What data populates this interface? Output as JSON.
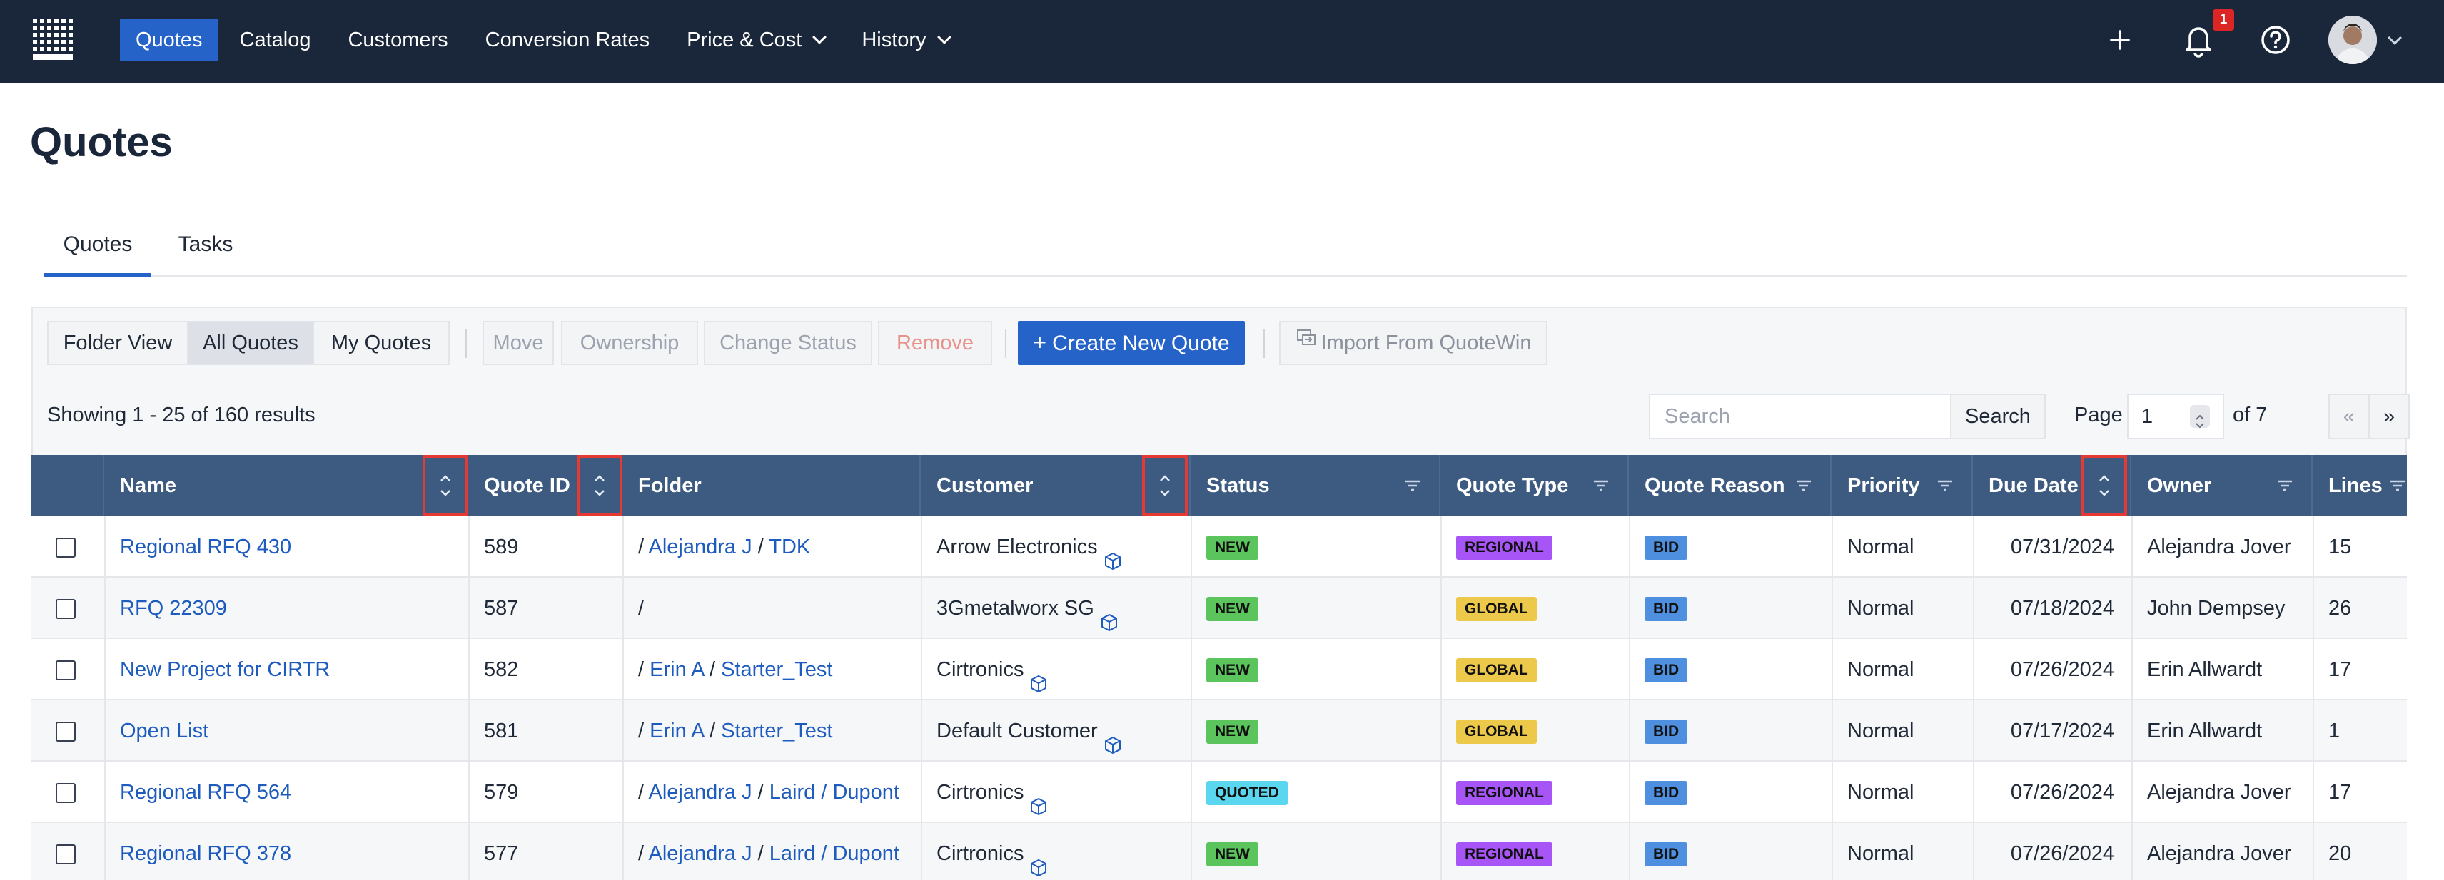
{
  "nav": {
    "items": [
      {
        "label": "Quotes",
        "active": true,
        "dropdown": false
      },
      {
        "label": "Catalog",
        "active": false,
        "dropdown": false
      },
      {
        "label": "Customers",
        "active": false,
        "dropdown": false
      },
      {
        "label": "Conversion Rates",
        "active": false,
        "dropdown": false
      },
      {
        "label": "Price & Cost",
        "active": false,
        "dropdown": true
      },
      {
        "label": "History",
        "active": false,
        "dropdown": true
      }
    ],
    "notification_count": "1",
    "icons": [
      "plus-icon",
      "bell-icon",
      "help-icon",
      "avatar",
      "chevron-down-icon"
    ]
  },
  "page": {
    "title": "Quotes"
  },
  "tabs": [
    {
      "label": "Quotes",
      "active": true
    },
    {
      "label": "Tasks",
      "active": false
    }
  ],
  "toolbar": {
    "folder_view": "Folder View",
    "all_quotes": "All Quotes",
    "my_quotes": "My Quotes",
    "move": "Move",
    "ownership": "Ownership",
    "change_status": "Change Status",
    "remove": "Remove",
    "create": "Create New Quote",
    "import": "Import From QuoteWin"
  },
  "results": {
    "showing": "Showing 1 - 25 of 160 results",
    "search_placeholder": "Search",
    "search_button": "Search",
    "page_label": "Page",
    "page_value": "1",
    "page_of": "of 7",
    "prev": "«",
    "next": "»"
  },
  "table": {
    "columns": [
      "Name",
      "Quote ID",
      "Folder",
      "Customer",
      "Status",
      "Quote Type",
      "Quote Reason",
      "Priority",
      "Due Date",
      "Owner",
      "Lines"
    ],
    "rows": [
      {
        "name": "Regional RFQ 430",
        "id": "589",
        "folder": [
          "Alejandra J",
          "TDK"
        ],
        "customer": "Arrow Electronics",
        "status": "NEW",
        "type": "REGIONAL",
        "reason": "BID",
        "priority": "Normal",
        "due": "07/31/2024",
        "owner": "Alejandra Jover",
        "lines": "15"
      },
      {
        "name": "RFQ 22309",
        "id": "587",
        "folder": [],
        "customer": "3Gmetalworx SG",
        "status": "NEW",
        "type": "GLOBAL",
        "reason": "BID",
        "priority": "Normal",
        "due": "07/18/2024",
        "owner": "John Dempsey",
        "lines": "26"
      },
      {
        "name": "New Project for CIRTR",
        "id": "582",
        "folder": [
          "Erin A",
          "Starter_Test"
        ],
        "customer": "Cirtronics",
        "status": "NEW",
        "type": "GLOBAL",
        "reason": "BID",
        "priority": "Normal",
        "due": "07/26/2024",
        "owner": "Erin Allwardt",
        "lines": "17"
      },
      {
        "name": "Open List",
        "id": "581",
        "folder": [
          "Erin A",
          "Starter_Test"
        ],
        "customer": "Default Customer",
        "status": "NEW",
        "type": "GLOBAL",
        "reason": "BID",
        "priority": "Normal",
        "due": "07/17/2024",
        "owner": "Erin Allwardt",
        "lines": "1"
      },
      {
        "name": "Regional RFQ 564",
        "id": "579",
        "folder": [
          "Alejandra J",
          "Laird / Dupont"
        ],
        "customer": "Cirtronics",
        "status": "QUOTED",
        "type": "REGIONAL",
        "reason": "BID",
        "priority": "Normal",
        "due": "07/26/2024",
        "owner": "Alejandra Jover",
        "lines": "17"
      },
      {
        "name": "Regional RFQ 378",
        "id": "577",
        "folder": [
          "Alejandra J",
          "Laird / Dupont"
        ],
        "customer": "Cirtronics",
        "status": "NEW",
        "type": "REGIONAL",
        "reason": "BID",
        "priority": "Normal",
        "due": "07/26/2024",
        "owner": "Alejandra Jover",
        "lines": "20"
      }
    ]
  },
  "colors": {
    "nav_bg": "#1a2639",
    "accent": "#2563c9",
    "header_bg": "#3d5a80",
    "highlight": "#e53935"
  }
}
